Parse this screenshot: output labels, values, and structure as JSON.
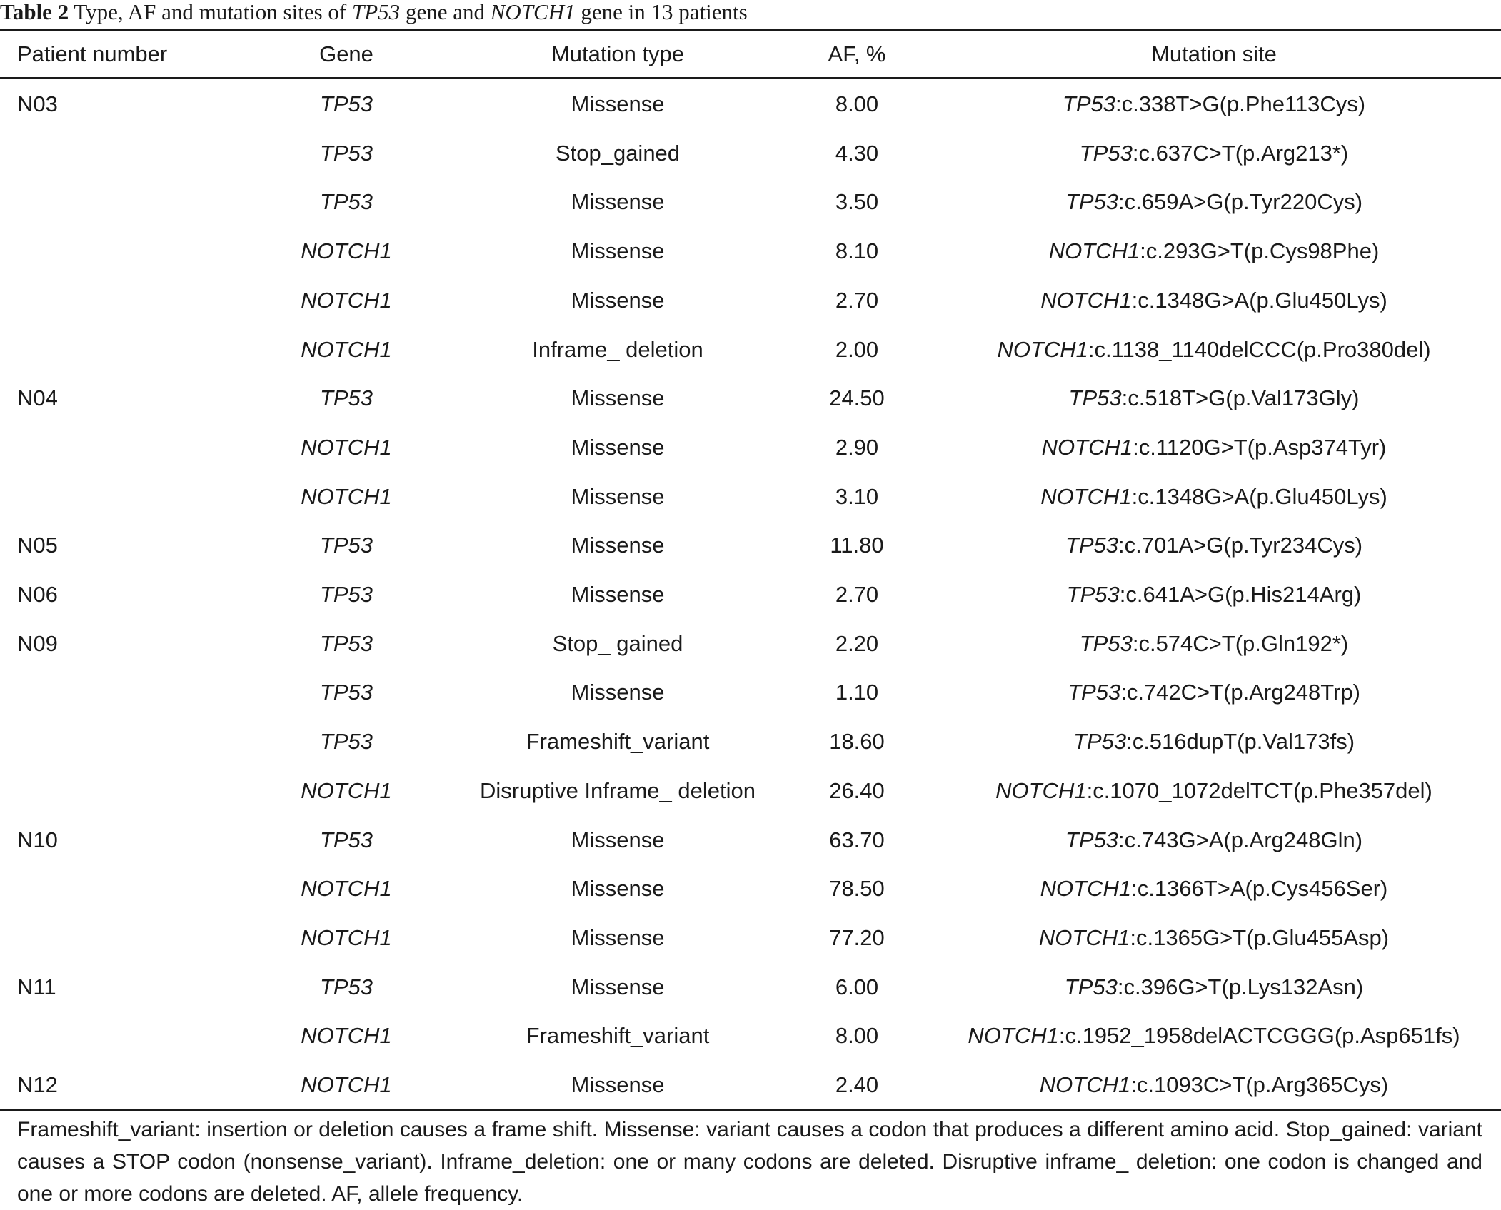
{
  "caption": {
    "label": "Table 2",
    "pre": " Type, AF and mutation sites of ",
    "gene1": "TP53",
    "mid": " gene and ",
    "gene2": "NOTCH1",
    "post": " gene in 13 patients"
  },
  "headers": {
    "patient": "Patient number",
    "gene": "Gene",
    "type": "Mutation type",
    "af": "AF, %",
    "site": "Mutation site"
  },
  "rows": [
    {
      "patient": "N03",
      "gene": "TP53",
      "type": "Missense",
      "af": "8.00",
      "site_gene": "TP53",
      "site_rest": ":c.338T>G(p.Phe113Cys)"
    },
    {
      "patient": "",
      "gene": "TP53",
      "type": "Stop_gained",
      "af": "4.30",
      "site_gene": "TP53",
      "site_rest": ":c.637C>T(p.Arg213*)"
    },
    {
      "patient": "",
      "gene": "TP53",
      "type": "Missense",
      "af": "3.50",
      "site_gene": "TP53",
      "site_rest": ":c.659A>G(p.Tyr220Cys)"
    },
    {
      "patient": "",
      "gene": "NOTCH1",
      "type": "Missense",
      "af": "8.10",
      "site_gene": "NOTCH1",
      "site_rest": ":c.293G>T(p.Cys98Phe)"
    },
    {
      "patient": "",
      "gene": "NOTCH1",
      "type": "Missense",
      "af": "2.70",
      "site_gene": "NOTCH1",
      "site_rest": ":c.1348G>A(p.Glu450Lys)"
    },
    {
      "patient": "",
      "gene": "NOTCH1",
      "type": "Inframe_ deletion",
      "af": "2.00",
      "site_gene": "NOTCH1",
      "site_rest": ":c.1138_1140delCCC(p.Pro380del)"
    },
    {
      "patient": "N04",
      "gene": "TP53",
      "type": "Missense",
      "af": "24.50",
      "site_gene": "TP53",
      "site_rest": ":c.518T>G(p.Val173Gly)"
    },
    {
      "patient": "",
      "gene": "NOTCH1",
      "type": "Missense",
      "af": "2.90",
      "site_gene": "NOTCH1",
      "site_rest": ":c.1120G>T(p.Asp374Tyr)"
    },
    {
      "patient": "",
      "gene": "NOTCH1",
      "type": "Missense",
      "af": "3.10",
      "site_gene": "NOTCH1",
      "site_rest": ":c.1348G>A(p.Glu450Lys)"
    },
    {
      "patient": "N05",
      "gene": "TP53",
      "type": "Missense",
      "af": "11.80",
      "site_gene": "TP53",
      "site_rest": ":c.701A>G(p.Tyr234Cys)"
    },
    {
      "patient": "N06",
      "gene": "TP53",
      "type": "Missense",
      "af": "2.70",
      "site_gene": "TP53",
      "site_rest": ":c.641A>G(p.His214Arg)"
    },
    {
      "patient": "N09",
      "gene": "TP53",
      "type": "Stop_ gained",
      "af": "2.20",
      "site_gene": "TP53",
      "site_rest": ":c.574C>T(p.Gln192*)"
    },
    {
      "patient": "",
      "gene": "TP53",
      "type": "Missense",
      "af": "1.10",
      "site_gene": "TP53",
      "site_rest": ":c.742C>T(p.Arg248Trp)"
    },
    {
      "patient": "",
      "gene": "TP53",
      "type": "Frameshift_variant",
      "af": "18.60",
      "site_gene": "TP53",
      "site_rest": ":c.516dupT(p.Val173fs)"
    },
    {
      "patient": "",
      "gene": "NOTCH1",
      "type": "Disruptive Inframe_ deletion",
      "af": "26.40",
      "site_gene": "NOTCH1",
      "site_rest": ":c.1070_1072delTCT(p.Phe357del)"
    },
    {
      "patient": "N10",
      "gene": "TP53",
      "type": "Missense",
      "af": "63.70",
      "site_gene": "TP53",
      "site_rest": ":c.743G>A(p.Arg248Gln)"
    },
    {
      "patient": "",
      "gene": "NOTCH1",
      "type": "Missense",
      "af": "78.50",
      "site_gene": "NOTCH1",
      "site_rest": ":c.1366T>A(p.Cys456Ser)"
    },
    {
      "patient": "",
      "gene": "NOTCH1",
      "type": "Missense",
      "af": "77.20",
      "site_gene": "NOTCH1",
      "site_rest": ":c.1365G>T(p.Glu455Asp)"
    },
    {
      "patient": "N11",
      "gene": "TP53",
      "type": "Missense",
      "af": "6.00",
      "site_gene": "TP53",
      "site_rest": ":c.396G>T(p.Lys132Asn)"
    },
    {
      "patient": "",
      "gene": "NOTCH1",
      "type": "Frameshift_variant",
      "af": "8.00",
      "site_gene": "NOTCH1",
      "site_rest": ":c.1952_1958delACTCGGG(p.Asp651fs)"
    },
    {
      "patient": "N12",
      "gene": "NOTCH1",
      "type": "Missense",
      "af": "2.40",
      "site_gene": "NOTCH1",
      "site_rest": ":c.1093C>T(p.Arg365Cys)"
    }
  ],
  "footnote": "Frameshift_variant: insertion or deletion causes a frame shift. Missense: variant causes a codon that produces a different amino acid. Stop_gained: variant causes a STOP codon (nonsense_variant). Inframe_deletion: one or many codons are deleted. Disruptive inframe_ deletion: one codon is changed and one or more codons are deleted. AF, allele frequency."
}
